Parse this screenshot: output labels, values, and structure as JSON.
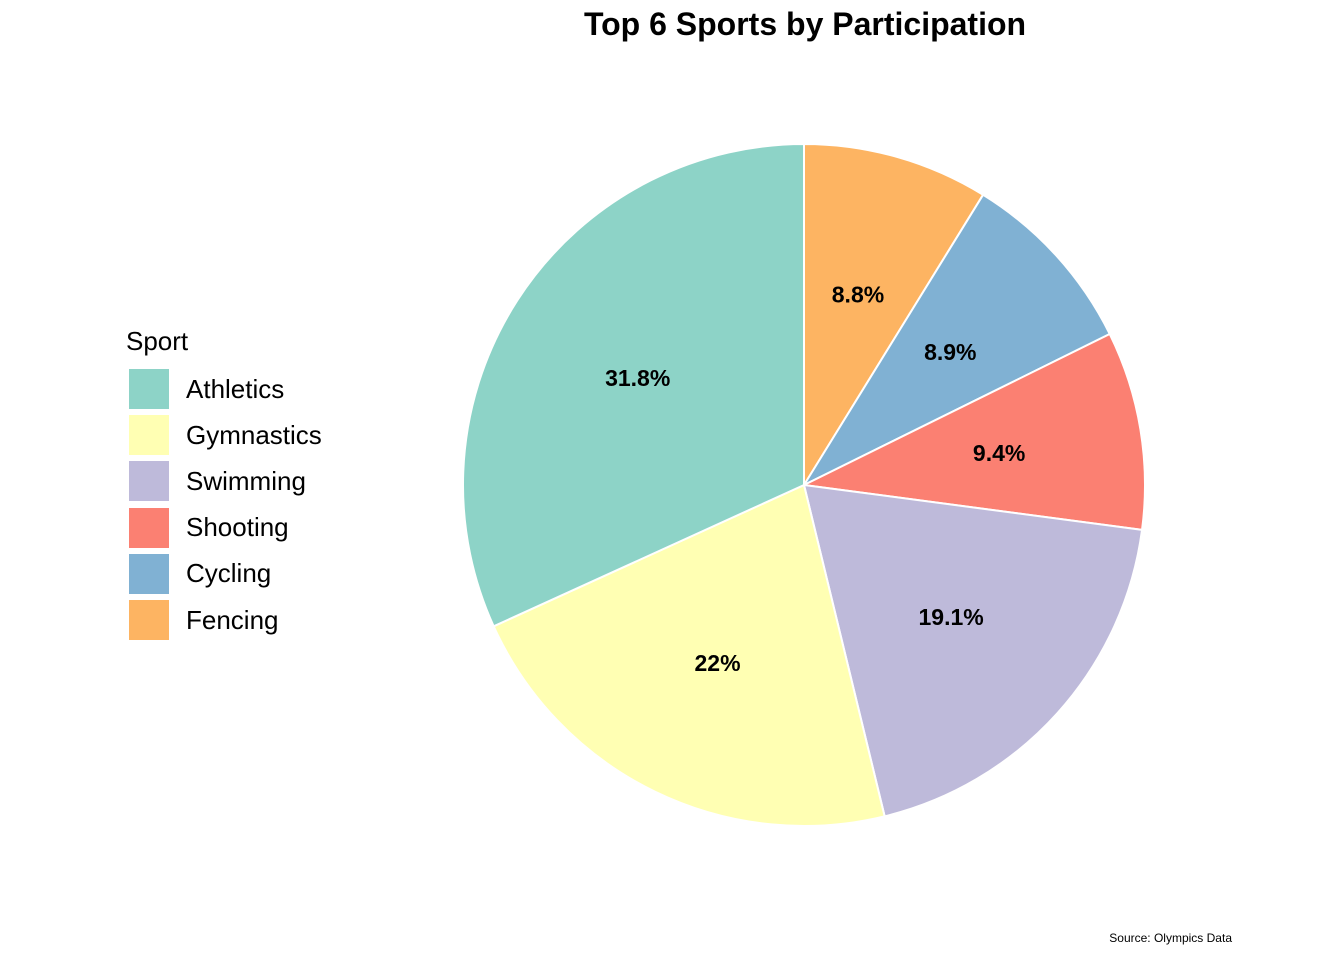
{
  "chart_data": {
    "type": "pie",
    "title": "Top 6 Sports by Participation",
    "legend": {
      "title": "Sport",
      "position": "left"
    },
    "slices": [
      {
        "name": "Fencing",
        "value": 8.8,
        "label": "8.8%",
        "color": "#fdb462"
      },
      {
        "name": "Cycling",
        "value": 8.9,
        "label": "8.9%",
        "color": "#80b1d3"
      },
      {
        "name": "Shooting",
        "value": 9.4,
        "label": "9.4%",
        "color": "#fb8072"
      },
      {
        "name": "Swimming",
        "value": 19.1,
        "label": "19.1%",
        "color": "#bebada"
      },
      {
        "name": "Gymnastics",
        "value": 22,
        "label": "22%",
        "color": "#ffffb3"
      },
      {
        "name": "Athletics",
        "value": 31.8,
        "label": "31.8%",
        "color": "#8dd3c7"
      }
    ],
    "legend_order": [
      "Athletics",
      "Gymnastics",
      "Swimming",
      "Shooting",
      "Cycling",
      "Fencing"
    ],
    "caption": "Source: Olympics Data"
  }
}
